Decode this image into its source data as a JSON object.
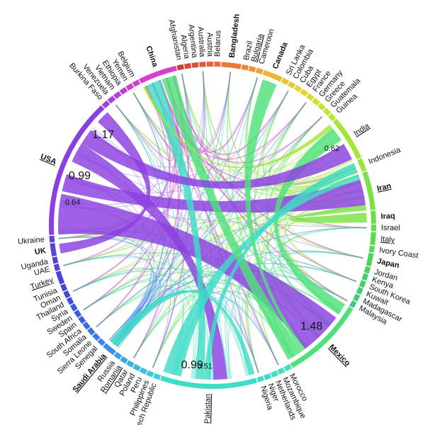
{
  "diagram": {
    "type": "chord",
    "nodes": [
      {
        "label": "Afghanistan",
        "color": "#d63b3b",
        "weight": 1
      },
      {
        "label": "Algeria",
        "color": "#d9453a",
        "weight": 1
      },
      {
        "label": "Argentina",
        "color": "#dc503a",
        "weight": 1
      },
      {
        "label": "Australia",
        "color": "#df5a3a",
        "weight": 1
      },
      {
        "label": "Austria",
        "color": "#e2653a",
        "weight": 1
      },
      {
        "label": "Belarus",
        "color": "#e56f3a",
        "weight": 1
      },
      {
        "label": "Bangladesh",
        "color": "#e87a3a",
        "weight": 3,
        "bold": true
      },
      {
        "label": "Brazil",
        "color": "#eb873a",
        "weight": 1
      },
      {
        "label": "Bulgaria",
        "color": "#ee943a",
        "weight": 1,
        "underline": true
      },
      {
        "label": "Cameroon",
        "color": "#f1a23a",
        "weight": 1
      },
      {
        "label": "Canada",
        "color": "#f0b531",
        "weight": 3,
        "bold": true
      },
      {
        "label": "Sri Lanka",
        "color": "#efc030",
        "weight": 1
      },
      {
        "label": "Colombia",
        "color": "#eccb30",
        "weight": 1
      },
      {
        "label": "Cuba",
        "color": "#e7d430",
        "weight": 1
      },
      {
        "label": "Egypt",
        "color": "#dfd830",
        "weight": 1
      },
      {
        "label": "France",
        "color": "#d6dc31",
        "weight": 1
      },
      {
        "label": "Germany",
        "color": "#cde031",
        "weight": 1
      },
      {
        "label": "Greece",
        "color": "#c4e232",
        "weight": 1
      },
      {
        "label": "Guatemala",
        "color": "#bbe433",
        "weight": 1
      },
      {
        "label": "Guinea",
        "color": "#b2e535",
        "weight": 1
      },
      {
        "label": "India",
        "color": "#a5e538",
        "weight": 7,
        "underline": true
      },
      {
        "label": "Indonesia",
        "color": "#98e43c",
        "weight": 2
      },
      {
        "label": "Iran",
        "color": "#7be246",
        "weight": 6,
        "bold": true,
        "underline": true
      },
      {
        "label": "Iraq",
        "color": "#6cde49",
        "weight": 2,
        "bold": true
      },
      {
        "label": "Israel",
        "color": "#63dc4c",
        "weight": 1
      },
      {
        "label": "Italy",
        "color": "#5bd94f",
        "weight": 2,
        "underline": true
      },
      {
        "label": "Ivory Coast",
        "color": "#54d753",
        "weight": 1
      },
      {
        "label": "Japan",
        "color": "#4dd457",
        "weight": 2,
        "bold": true
      },
      {
        "label": "Jordan",
        "color": "#49d25c",
        "weight": 1
      },
      {
        "label": "Kenya",
        "color": "#46d062",
        "weight": 1
      },
      {
        "label": "South Korea",
        "color": "#45ce69",
        "weight": 1
      },
      {
        "label": "Kuwait",
        "color": "#44cc70",
        "weight": 1
      },
      {
        "label": "Madagascar",
        "color": "#44ca77",
        "weight": 1
      },
      {
        "label": "Malaysia",
        "color": "#44c87e",
        "weight": 1
      },
      {
        "label": "Mexico",
        "color": "#4fe07a",
        "weight": 13,
        "bold": true,
        "underline": true
      },
      {
        "label": "Morocco",
        "color": "#45e0b0",
        "weight": 1
      },
      {
        "label": "Mozambique",
        "color": "#42dfba",
        "weight": 1
      },
      {
        "label": "Netherlands",
        "color": "#40dec3",
        "weight": 1
      },
      {
        "label": "Niger",
        "color": "#3fdccc",
        "weight": 1
      },
      {
        "label": "Nigeria",
        "color": "#3fdad4",
        "weight": 1
      },
      {
        "label": "Pakistan",
        "color": "#3fdcc6",
        "weight": 15,
        "underline": true
      },
      {
        "label": "Czech Republic",
        "color": "#3cd2dc",
        "weight": 1
      },
      {
        "label": "Philippines",
        "color": "#3bc9e0",
        "weight": 1
      },
      {
        "label": "Peru",
        "color": "#3bc0e2",
        "weight": 1
      },
      {
        "label": "Poland",
        "color": "#3bb7e4",
        "weight": 1
      },
      {
        "label": "Qatar",
        "color": "#3baee5",
        "weight": 1
      },
      {
        "label": "Romania",
        "color": "#3ba5e6",
        "weight": 1,
        "underline": true
      },
      {
        "label": "Russia",
        "color": "#3b9ce6",
        "weight": 1
      },
      {
        "label": "Saudi Arabia",
        "color": "#3a8fe6",
        "weight": 2,
        "bold": true,
        "underline": true
      },
      {
        "label": "Senegal",
        "color": "#3a85e5",
        "weight": 1
      },
      {
        "label": "Sierra Leone",
        "color": "#3a7ce4",
        "weight": 1
      },
      {
        "label": "Somalia",
        "color": "#3a73e3",
        "weight": 1
      },
      {
        "label": "South Africa",
        "color": "#3a6be2",
        "weight": 1
      },
      {
        "label": "Spain",
        "color": "#3a63e1",
        "weight": 1
      },
      {
        "label": "Sweden",
        "color": "#3a5bdf",
        "weight": 1
      },
      {
        "label": "Syria",
        "color": "#3b55dd",
        "weight": 1
      },
      {
        "label": "Thailand",
        "color": "#3c4fdb",
        "weight": 1
      },
      {
        "label": "Oman",
        "color": "#3e4ad8",
        "weight": 1
      },
      {
        "label": "Tunisia",
        "color": "#4046d5",
        "weight": 1
      },
      {
        "label": "Turkey",
        "color": "#4a45d6",
        "weight": 2,
        "underline": true
      },
      {
        "label": "UAE",
        "color": "#5044d6",
        "weight": 1
      },
      {
        "label": "Uganda",
        "color": "#5643d6",
        "weight": 1
      },
      {
        "label": "UK",
        "color": "#5c42d6",
        "weight": 2,
        "bold": true
      },
      {
        "label": "Ukraine",
        "color": "#6241d6",
        "weight": 1
      },
      {
        "label": "USA",
        "color": "#8a3fe0",
        "weight": 22,
        "bold": true,
        "underline": true
      },
      {
        "label": "Burkina Faso",
        "color": "#a23fdf",
        "weight": 1
      },
      {
        "label": "Venezuela",
        "color": "#ab3fdc",
        "weight": 1
      },
      {
        "label": "Vietnam",
        "color": "#b43fd9",
        "weight": 1
      },
      {
        "label": "Ethiopia",
        "color": "#bd3fd6",
        "weight": 1
      },
      {
        "label": "Yemen",
        "color": "#c63fd3",
        "weight": 1
      },
      {
        "label": "Belgium",
        "color": "#cf3fd0",
        "weight": 1
      },
      {
        "label": "China",
        "color": "#d83ecb",
        "weight": 6,
        "bold": true
      }
    ],
    "value_labels": [
      {
        "text": "0.64",
        "node": "USA",
        "pos": 0.25
      },
      {
        "text": "0.99",
        "node": "USA",
        "pos": 0.47
      },
      {
        "text": "1.17",
        "node": "USA",
        "pos": 0.85
      },
      {
        "text": "0.62",
        "node": "India",
        "pos": 0.5
      },
      {
        "text": "1.48",
        "node": "Mexico",
        "pos": 0.5
      },
      {
        "text": "0.99",
        "node": "Pakistan",
        "pos": 0.7
      },
      {
        "text": "0.51",
        "node": "Pakistan",
        "pos": 0.55
      }
    ],
    "major_links": [
      {
        "source": "USA",
        "target": "Mexico",
        "s": [
          0.0,
          0.3
        ],
        "t": [
          0.2,
          0.75
        ],
        "color": "#8a3fe0"
      },
      {
        "source": "USA",
        "target": "Iran",
        "s": [
          0.32,
          0.45
        ],
        "t": [
          0.15,
          0.85
        ],
        "color": "#8a3fe0"
      },
      {
        "source": "USA",
        "target": "Pakistan",
        "s": [
          0.55,
          0.7
        ],
        "t": [
          0.3,
          0.45
        ],
        "color": "#8a3fe0"
      },
      {
        "source": "Pakistan",
        "target": "Iran",
        "s": [
          0.8,
          1.0
        ],
        "t": [
          0.0,
          0.15
        ],
        "color": "#3fdcc6"
      },
      {
        "source": "Pakistan",
        "target": "China",
        "s": [
          0.55,
          0.65
        ],
        "t": [
          0.1,
          0.5
        ],
        "color": "#3fdcc6"
      },
      {
        "source": "Mexico",
        "target": "India",
        "s": [
          0.0,
          0.15
        ],
        "t": [
          0.1,
          0.45
        ],
        "color": "#4fe07a"
      },
      {
        "source": "Mexico",
        "target": "China",
        "s": [
          0.8,
          1.0
        ],
        "t": [
          0.55,
          0.95
        ],
        "color": "#4fe07a"
      },
      {
        "source": "Pakistan",
        "target": "Indonesia",
        "s": [
          0.48,
          0.55
        ],
        "t": [
          0.1,
          0.9
        ],
        "color": "#3fdcc6"
      },
      {
        "source": "USA",
        "target": "India",
        "s": [
          0.7,
          0.82
        ],
        "t": [
          0.55,
          0.95
        ],
        "color": "#8a3fe0"
      },
      {
        "source": "China",
        "target": "India",
        "s": [
          0.0,
          0.08
        ],
        "t": [
          0.0,
          0.1
        ],
        "color": "#a5e538"
      },
      {
        "source": "Pakistan",
        "target": "Saudi Arabia",
        "s": [
          0.0,
          0.06
        ],
        "t": [
          0.1,
          0.9
        ],
        "color": "#3fdcc6"
      },
      {
        "source": "Mexico",
        "target": "Canada",
        "s": [
          0.75,
          0.8
        ],
        "t": [
          0.1,
          0.9
        ],
        "color": "#4fe07a"
      },
      {
        "source": "Iran",
        "target": "Iraq",
        "s": [
          0.85,
          1.0
        ],
        "t": [
          0.1,
          0.9
        ],
        "color": "#7be246"
      },
      {
        "source": "USA",
        "target": "UK",
        "s": [
          0.9,
          1.0
        ],
        "t": [
          0.1,
          0.9
        ],
        "color": "#8a3fe0"
      }
    ]
  }
}
